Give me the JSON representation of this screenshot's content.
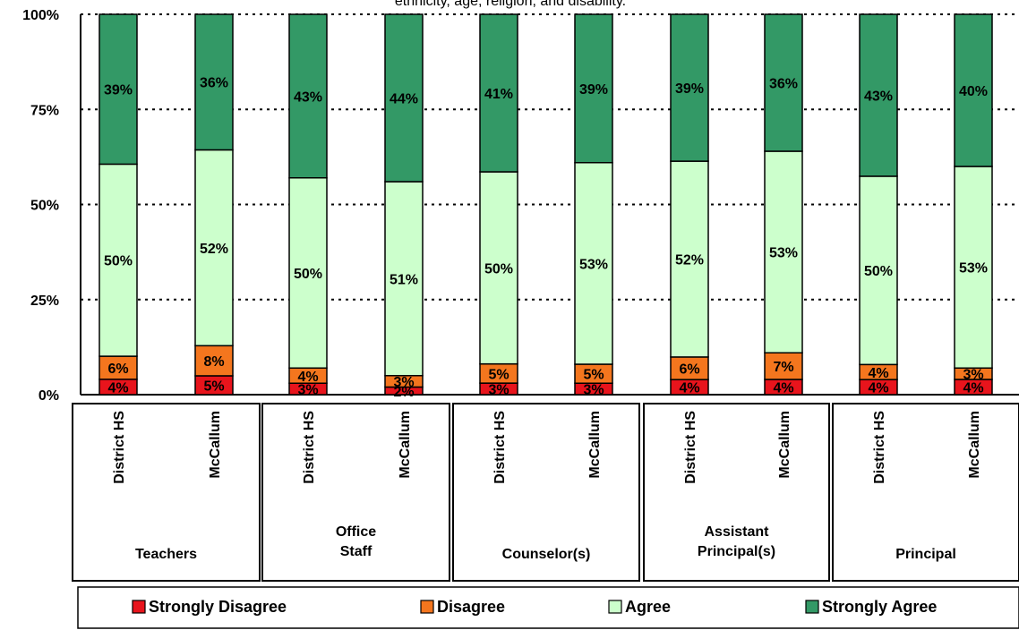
{
  "chart_data": {
    "type": "bar",
    "stacked": true,
    "normalized": true,
    "title": "ethnicity, age, religion, and disability.",
    "ylim": [
      0,
      100
    ],
    "yticks": [
      "0%",
      "25%",
      "50%",
      "75%",
      "100%"
    ],
    "grid": "dotted horizontal",
    "legend_position": "bottom",
    "categories": [
      "District HS",
      "McCallum",
      "District HS",
      "McCallum",
      "District HS",
      "McCallum",
      "District HS",
      "McCallum",
      "District HS",
      "McCallum"
    ],
    "groups": [
      {
        "label": "Teachers",
        "size": 2
      },
      {
        "label": "Office\nStaff",
        "size": 2
      },
      {
        "label": "Counselor(s)",
        "size": 2
      },
      {
        "label": "Assistant\nPrincipal(s)",
        "size": 2
      },
      {
        "label": "Principal",
        "size": 2
      }
    ],
    "series": [
      {
        "name": "Strongly Disagree",
        "color": "#e8141c",
        "values": [
          4,
          5,
          3,
          2,
          3,
          3,
          4,
          4,
          4,
          4
        ]
      },
      {
        "name": "Disagree",
        "color": "#f4761e",
        "values": [
          6,
          8,
          4,
          3,
          5,
          5,
          6,
          7,
          4,
          3
        ]
      },
      {
        "name": "Agree",
        "color": "#ccffcc",
        "values": [
          50,
          52,
          50,
          51,
          50,
          53,
          52,
          53,
          50,
          53
        ]
      },
      {
        "name": "Strongly Agree",
        "color": "#339966",
        "values": [
          39,
          36,
          43,
          44,
          41,
          39,
          39,
          36,
          43,
          40
        ]
      }
    ]
  }
}
